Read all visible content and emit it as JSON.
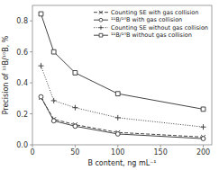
{
  "chart_data": {
    "type": "line",
    "x": [
      10,
      25,
      50,
      100,
      200
    ],
    "series": [
      {
        "name": "Counting SE with gas collision",
        "values": [
          0.305,
          0.165,
          0.13,
          0.08,
          0.05
        ],
        "color": "#444444",
        "marker": "x",
        "line_style": "dashed"
      },
      {
        "name": "¹¹B/¹⁰B with gas collision",
        "values": [
          0.31,
          0.155,
          0.12,
          0.07,
          0.04
        ],
        "color": "#444444",
        "marker": "circle",
        "line_style": "solid"
      },
      {
        "name": "Counting SE without gas collision",
        "values": [
          0.51,
          0.285,
          0.24,
          0.175,
          0.115
        ],
        "color": "#444444",
        "marker": "plus",
        "line_style": "dotted"
      },
      {
        "name": "¹¹B/¹⁰B without gas collision",
        "values": [
          0.845,
          0.6,
          0.465,
          0.33,
          0.23
        ],
        "color": "#444444",
        "marker": "square",
        "line_style": "solid"
      }
    ],
    "xlabel": "B content, ng mL⁻¹",
    "ylabel": "Precision of ¹¹B/¹⁰B, %",
    "xlim": [
      0,
      210
    ],
    "ylim": [
      0.0,
      0.9
    ],
    "xticks": [
      0,
      50,
      100,
      150,
      200
    ],
    "yticks": [
      {
        "value": 0.0,
        "label": "0.0"
      },
      0.2,
      0.4,
      0.6,
      0.8
    ],
    "legend": "upper right"
  }
}
